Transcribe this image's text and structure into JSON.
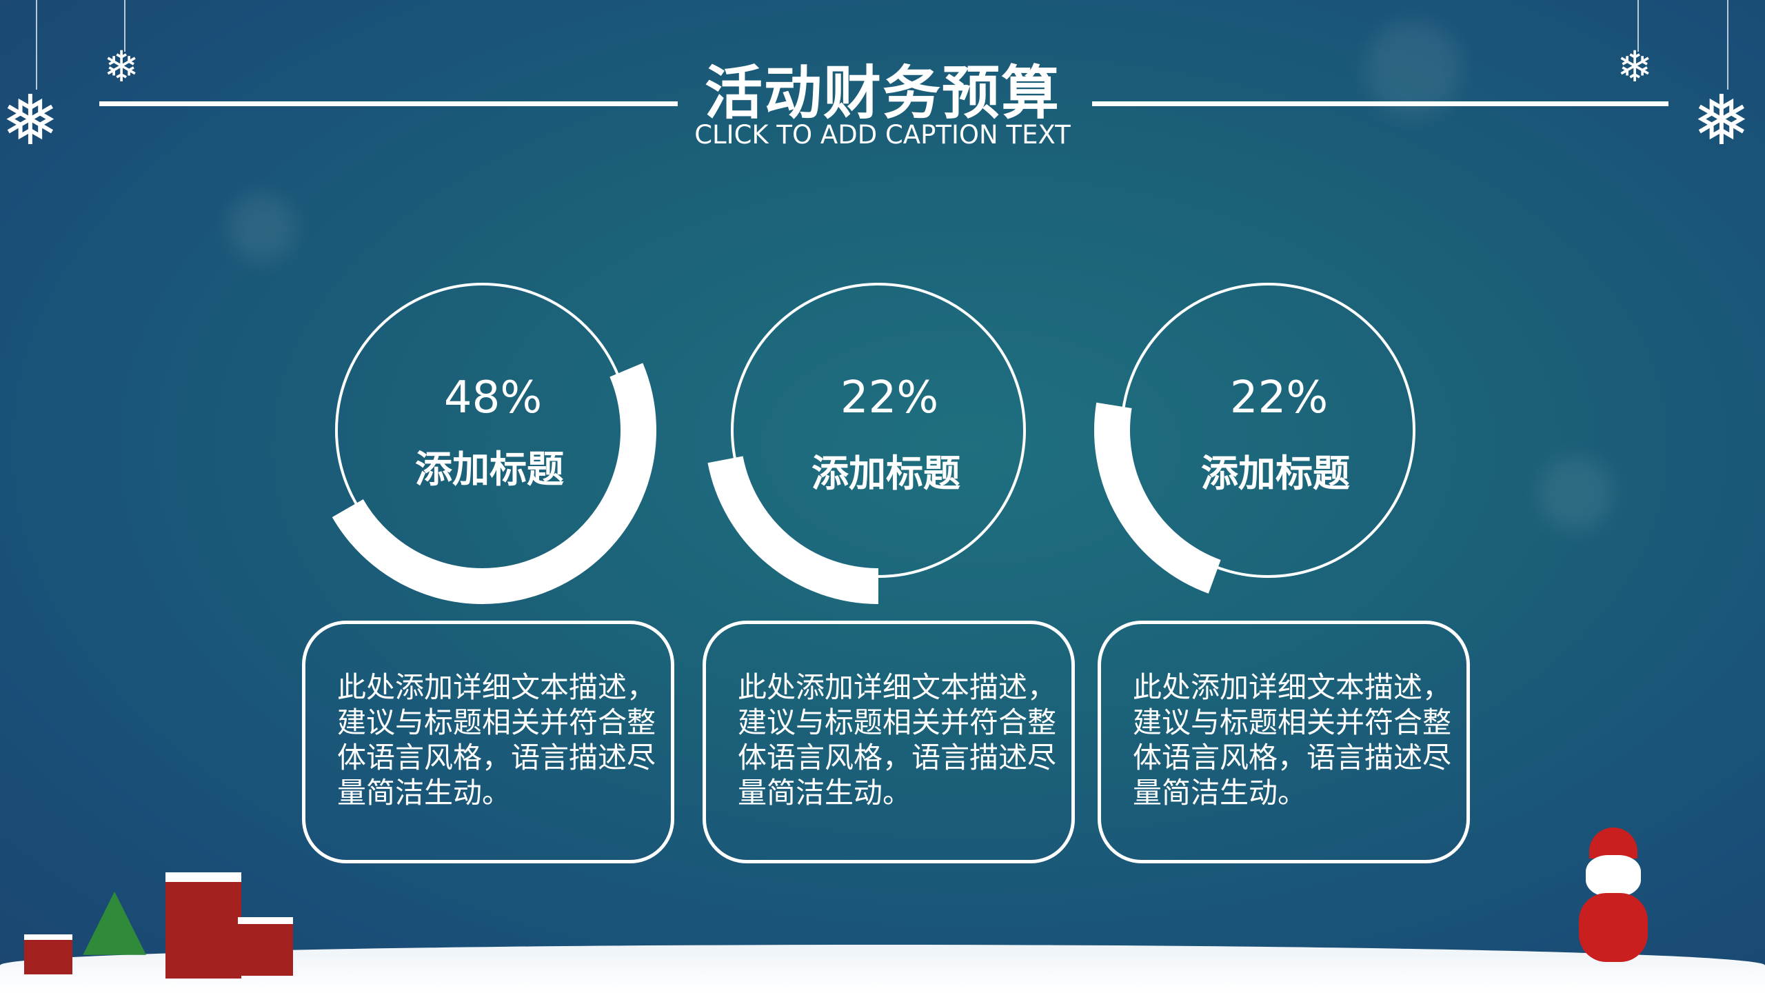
{
  "header": {
    "title": "活动财务预算",
    "caption": "CLICK TO ADD CAPTION TEXT"
  },
  "colors": {
    "background": "#1b6078",
    "accent": "#ffffff"
  },
  "cards": [
    {
      "percent_label": "48%",
      "percent": 48,
      "title": "添加标题",
      "description": "此处添加详细文本描述，建议与标题相关并符合整体语言风格，语言描述尽量简洁生动。"
    },
    {
      "percent_label": "22%",
      "percent": 22,
      "title": "添加标题",
      "description": "此处添加详细文本描述，建议与标题相关并符合整体语言风格，语言描述尽量简洁生动。"
    },
    {
      "percent_label": "22%",
      "percent": 22,
      "title": "添加标题",
      "description": "此处添加详细文本描述，建议与标题相关并符合整体语言风格，语言描述尽量简洁生动。"
    }
  ],
  "decorations": {
    "icons": [
      "snowflake-icon",
      "christmas-house-icon",
      "christmas-tree-icon",
      "santa-claus-icon"
    ]
  }
}
